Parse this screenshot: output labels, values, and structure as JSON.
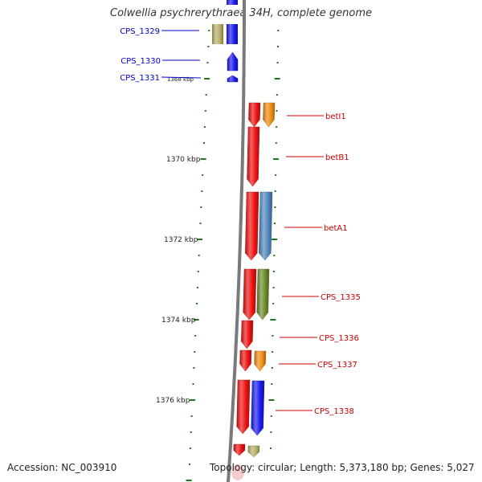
{
  "title": "Colwellia psychrerythraea 34H, complete genome",
  "footer": {
    "accession": "Accession: NC_003910",
    "topology": "Topology: circular; Length: 5,373,180 bp; Genes: 5,027"
  },
  "colors": {
    "backbone": "#7a7a7a",
    "tick": "#1f7a1f",
    "left_labels": "#0000cc",
    "right_labels": "#cc0000",
    "scale_labels": "#222222"
  },
  "scale_labels": [
    "1368 kbp",
    "1370 kbp",
    "1372 kbp",
    "1374 kbp",
    "1376 kbp"
  ],
  "left_features": [
    "CPS_1329",
    "CPS_1330",
    "CPS_1331"
  ],
  "right_features": [
    "betI1",
    "betB1",
    "betA1",
    "CPS_1335",
    "CPS_1336",
    "CPS_1337",
    "CPS_1338"
  ],
  "feature_colors": {
    "CPS_1329": "#b8b06a",
    "CPS_1330": "#1a1aee",
    "CPS_1331": "#1a1aee",
    "betI1": "#f08c10",
    "betB1": "#ee1111",
    "betA1": "#4f86bd",
    "CPS_1335": "#6b8a2a",
    "CPS_1336": "#ee1111",
    "CPS_1337": "#f08c10",
    "CPS_1338": "#1a1aee"
  }
}
